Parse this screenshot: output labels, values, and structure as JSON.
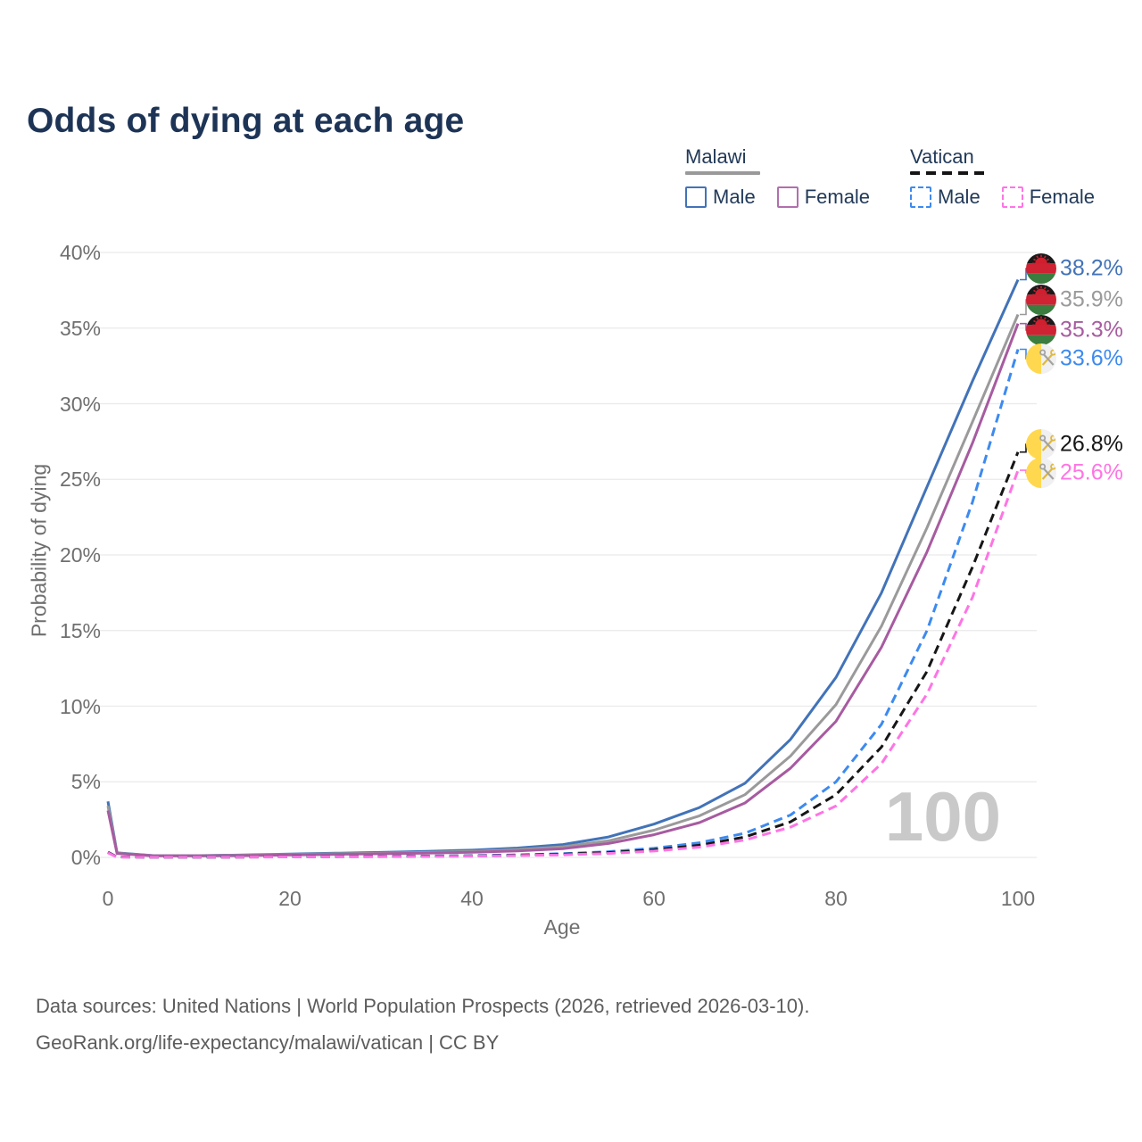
{
  "title": "Odds of dying at each age",
  "legend": {
    "groups": [
      {
        "label": "Malawi",
        "line_style": "solid",
        "underline_color": "#999999",
        "items": [
          {
            "label": "Male",
            "color": "#4273b8",
            "dashed": false
          },
          {
            "label": "Female",
            "color": "#b06fad",
            "dashed": false
          }
        ]
      },
      {
        "label": "Vatican",
        "line_style": "dashed",
        "underline_color": "#141414",
        "items": [
          {
            "label": "Male",
            "color": "#3d8af0",
            "dashed": true
          },
          {
            "label": "Female",
            "color": "#ff74e4",
            "dashed": true
          }
        ]
      }
    ]
  },
  "chart_data": {
    "type": "line",
    "title": "Odds of dying at each age",
    "xlabel": "Age",
    "ylabel": "Probability of dying",
    "xlim": [
      0,
      100
    ],
    "ylim": [
      0,
      40
    ],
    "x_ticks": [
      0,
      20,
      40,
      60,
      80,
      100
    ],
    "y_ticks": [
      0,
      5,
      10,
      15,
      20,
      25,
      30,
      35,
      40
    ],
    "y_tick_suffix": "%",
    "grid": "horizontal",
    "legend_position": "top-right",
    "watermark": "100",
    "ages": [
      0,
      1,
      5,
      10,
      15,
      20,
      25,
      30,
      35,
      40,
      45,
      50,
      55,
      60,
      65,
      70,
      75,
      80,
      85,
      90,
      95,
      100
    ],
    "series": [
      {
        "name": "Malawi Male",
        "country": "Malawi",
        "sex": "Male",
        "flag": "malawi",
        "color": "#4273b8",
        "dashed": false,
        "end_label": "38.2%",
        "values": [
          3.7,
          0.3,
          0.12,
          0.12,
          0.16,
          0.22,
          0.28,
          0.33,
          0.4,
          0.48,
          0.62,
          0.85,
          1.35,
          2.2,
          3.3,
          4.9,
          7.8,
          11.9,
          17.5,
          24.5,
          31.5,
          38.2
        ]
      },
      {
        "name": "Malawi Both sexes",
        "country": "Malawi",
        "sex": "Both",
        "flag": "malawi",
        "color": "#9a9a9a",
        "dashed": false,
        "end_label": "35.9%",
        "values": [
          3.4,
          0.28,
          0.11,
          0.11,
          0.14,
          0.19,
          0.24,
          0.28,
          0.33,
          0.4,
          0.52,
          0.7,
          1.1,
          1.8,
          2.75,
          4.15,
          6.7,
          10.1,
          15.3,
          21.8,
          28.8,
          35.9
        ]
      },
      {
        "name": "Malawi Female",
        "country": "Malawi",
        "sex": "Female",
        "flag": "malawi",
        "color": "#a75ba0",
        "dashed": false,
        "end_label": "35.3%",
        "values": [
          3.1,
          0.26,
          0.1,
          0.1,
          0.12,
          0.16,
          0.2,
          0.24,
          0.28,
          0.34,
          0.43,
          0.58,
          0.92,
          1.5,
          2.3,
          3.6,
          5.9,
          9.0,
          13.9,
          20.2,
          27.4,
          35.3
        ]
      },
      {
        "name": "Vatican Male",
        "country": "Vatican",
        "sex": "Male",
        "flag": "vatican",
        "color": "#3d8af0",
        "dashed": true,
        "end_label": "33.6%",
        "values": [
          0.35,
          0.03,
          0.01,
          0.01,
          0.03,
          0.05,
          0.06,
          0.07,
          0.09,
          0.12,
          0.17,
          0.25,
          0.38,
          0.6,
          0.97,
          1.6,
          2.8,
          5.0,
          8.8,
          15.0,
          23.5,
          33.6
        ]
      },
      {
        "name": "Vatican Both sexes",
        "country": "Vatican",
        "sex": "Both",
        "flag": "vatican",
        "color": "#161616",
        "dashed": true,
        "end_label": "26.8%",
        "values": [
          0.33,
          0.03,
          0.01,
          0.01,
          0.02,
          0.04,
          0.05,
          0.06,
          0.08,
          0.1,
          0.14,
          0.21,
          0.32,
          0.5,
          0.8,
          1.35,
          2.35,
          4.15,
          7.3,
          12.3,
          19.2,
          26.8
        ]
      },
      {
        "name": "Vatican Female",
        "country": "Vatican",
        "sex": "Female",
        "flag": "vatican",
        "color": "#ff74e4",
        "dashed": true,
        "end_label": "25.6%",
        "values": [
          0.3,
          0.02,
          0.01,
          0.01,
          0.02,
          0.03,
          0.04,
          0.05,
          0.06,
          0.08,
          0.12,
          0.17,
          0.26,
          0.42,
          0.68,
          1.15,
          2.0,
          3.4,
          6.2,
          10.8,
          17.2,
          25.6
        ]
      }
    ]
  },
  "footer": {
    "line1": "Data sources: United Nations | World Population Prospects (2026, retrieved 2026-03-10).",
    "line2": "GeoRank.org/life-expectancy/malawi/vatican | CC BY"
  }
}
